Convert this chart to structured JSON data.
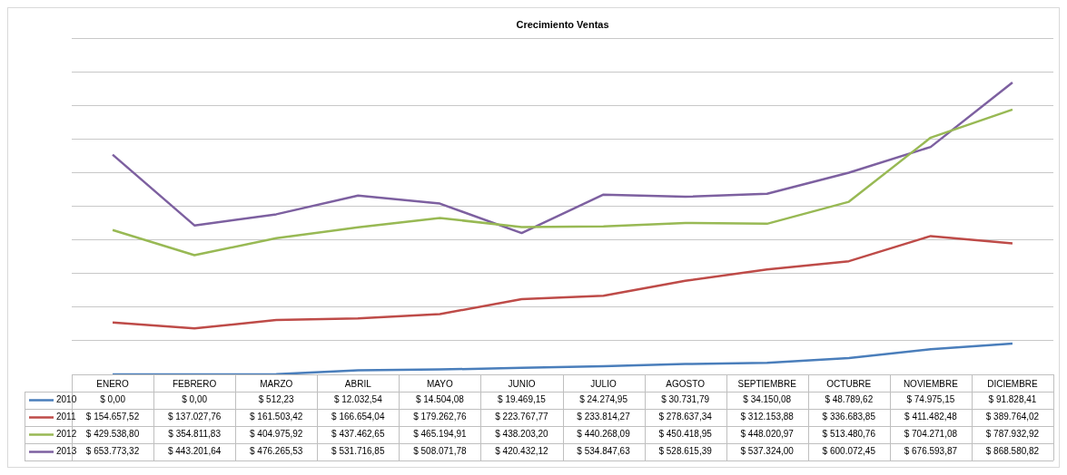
{
  "chart_data": {
    "type": "line",
    "title": "Crecimiento Ventas",
    "categories": [
      "ENERO",
      "FEBRERO",
      "MARZO",
      "ABRIL",
      "MAYO",
      "JUNIO",
      "JULIO",
      "AGOSTO",
      "SEPTIEMBRE",
      "OCTUBRE",
      "NOVIEMBRE",
      "DICIEMBRE"
    ],
    "series": [
      {
        "name": "2010",
        "color": "#4a7ebb",
        "values": [
          0,
          0,
          512.23,
          12032.54,
          14504.08,
          19469.15,
          24274.95,
          30731.79,
          34150.08,
          48789.62,
          74975.15,
          91828.41
        ],
        "value_labels": [
          "$ 0,00",
          "$ 0,00",
          "$ 512,23",
          "$ 12.032,54",
          "$ 14.504,08",
          "$ 19.469,15",
          "$ 24.274,95",
          "$ 30.731,79",
          "$ 34.150,08",
          "$ 48.789,62",
          "$ 74.975,15",
          "$ 91.828,41"
        ]
      },
      {
        "name": "2011",
        "color": "#be4b48",
        "values": [
          154657.52,
          137027.76,
          161503.42,
          166654.04,
          179262.76,
          223767.77,
          233814.27,
          278637.34,
          312153.88,
          336683.85,
          411482.48,
          389764.02
        ],
        "value_labels": [
          "$ 154.657,52",
          "$ 137.027,76",
          "$ 161.503,42",
          "$ 166.654,04",
          "$ 179.262,76",
          "$ 223.767,77",
          "$ 233.814,27",
          "$ 278.637,34",
          "$ 312.153,88",
          "$ 336.683,85",
          "$ 411.482,48",
          "$ 389.764,02"
        ]
      },
      {
        "name": "2012",
        "color": "#98b954",
        "values": [
          429538.8,
          354811.83,
          404975.92,
          437462.65,
          465194.91,
          438203.2,
          440268.09,
          450418.95,
          448020.97,
          513480.76,
          704271.08,
          787932.92
        ],
        "value_labels": [
          "$ 429.538,80",
          "$ 354.811,83",
          "$ 404.975,92",
          "$ 437.462,65",
          "$ 465.194,91",
          "$ 438.203,20",
          "$ 440.268,09",
          "$ 450.418,95",
          "$ 448.020,97",
          "$ 513.480,76",
          "$ 704.271,08",
          "$ 787.932,92"
        ]
      },
      {
        "name": "2013",
        "color": "#7d60a0",
        "values": [
          653773.32,
          443201.64,
          476265.53,
          531716.85,
          508071.78,
          420432.12,
          534847.63,
          528615.39,
          537324.0,
          600072.45,
          676593.87,
          868580.82
        ],
        "value_labels": [
          "$ 653.773,32",
          "$ 443.201,64",
          "$ 476.265,53",
          "$ 531.716,85",
          "$ 508.071,78",
          "$ 420.432,12",
          "$ 534.847,63",
          "$ 528.615,39",
          "$ 537.324,00",
          "$ 600.072,45",
          "$ 676.593,87",
          "$ 868.580,82"
        ]
      }
    ],
    "ylim": [
      0,
      1000000
    ],
    "yticks": [
      {
        "value": 0,
        "label": null
      },
      {
        "value": 100000,
        "label": null
      },
      {
        "value": 200000,
        "label": null
      },
      {
        "value": 300000,
        "label": null
      },
      {
        "value": 400000,
        "label": null
      },
      {
        "value": 500000,
        "label": null
      },
      {
        "value": 600000,
        "label": null
      },
      {
        "value": 700000,
        "label": null
      },
      {
        "value": 800000,
        "label": null
      },
      {
        "value": 900000,
        "label": null
      },
      {
        "value": 1000000,
        "label": null
      }
    ],
    "grid": "y",
    "tick_labels": "x",
    "legend": "bottom",
    "marker": "none",
    "line_style": "solid"
  }
}
